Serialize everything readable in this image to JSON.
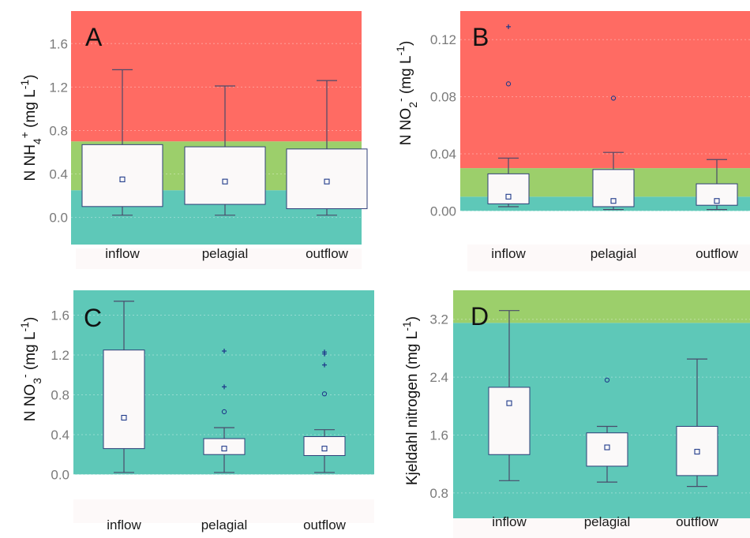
{
  "colors": {
    "poor": "#ff6b63",
    "moderate": "#9ccf6b",
    "good": "#5ec8b8",
    "box_fill": "#fbf9f9",
    "box_edge": "#2f3e78",
    "whisker": "#4a4a6a",
    "mean_marker": "#1f3a8a",
    "outlier": "#1f3a8a",
    "tick_text": "#7a7a7a"
  },
  "chart_data": [
    {
      "type": "box",
      "panel": "A",
      "ylabel_parts": [
        "N NH",
        "4",
        "+",
        " (mg L",
        "-1",
        ")"
      ],
      "yticks": [
        "0.0",
        "0.4",
        "0.8",
        "1.2",
        "1.6"
      ],
      "ylim": [
        -0.25,
        1.9
      ],
      "grid": true,
      "categories": [
        "inflow",
        "pelagial",
        "outflow"
      ],
      "bands": [
        {
          "class": "good",
          "from": -0.25,
          "to": 0.25
        },
        {
          "class": "moderate",
          "from": 0.25,
          "to": 0.7
        },
        {
          "class": "poor",
          "from": 0.7,
          "to": 1.9
        }
      ],
      "boxes": [
        {
          "category": "inflow",
          "min": 0.02,
          "q1": 0.1,
          "q3": 0.67,
          "max": 1.36,
          "mean": 0.35,
          "mild_outliers": [],
          "extreme_outliers": []
        },
        {
          "category": "pelagial",
          "min": 0.02,
          "q1": 0.12,
          "q3": 0.65,
          "max": 1.21,
          "mean": 0.33,
          "mild_outliers": [],
          "extreme_outliers": []
        },
        {
          "category": "outflow",
          "min": 0.02,
          "q1": 0.08,
          "q3": 0.63,
          "max": 1.26,
          "mean": 0.33,
          "mild_outliers": [],
          "extreme_outliers": []
        }
      ]
    },
    {
      "type": "box",
      "panel": "B",
      "ylabel_parts": [
        "N NO",
        "2",
        "-",
        " (mg L",
        "-1",
        ")"
      ],
      "yticks": [
        "0.00",
        "0.04",
        "0.08",
        "0.12"
      ],
      "ylim": [
        -0.018,
        0.14
      ],
      "grid": true,
      "categories": [
        "inflow",
        "pelagial",
        "outflow"
      ],
      "bands": [
        {
          "class": "good",
          "from": 0.0,
          "to": 0.01
        },
        {
          "class": "moderate",
          "from": 0.01,
          "to": 0.03
        },
        {
          "class": "poor",
          "from": 0.03,
          "to": 0.14
        }
      ],
      "boxes": [
        {
          "category": "inflow",
          "min": 0.003,
          "q1": 0.005,
          "q3": 0.026,
          "max": 0.037,
          "mean": 0.01,
          "mild_outliers": [
            0.089
          ],
          "extreme_outliers": [
            0.129
          ]
        },
        {
          "category": "pelagial",
          "min": 0.001,
          "q1": 0.003,
          "q3": 0.029,
          "max": 0.041,
          "mean": 0.007,
          "mild_outliers": [
            0.079
          ],
          "extreme_outliers": []
        },
        {
          "category": "outflow",
          "min": 0.001,
          "q1": 0.004,
          "q3": 0.019,
          "max": 0.036,
          "mean": 0.007,
          "mild_outliers": [],
          "extreme_outliers": []
        }
      ]
    },
    {
      "type": "box",
      "panel": "C",
      "ylabel_parts": [
        "N NO",
        "3",
        "-",
        " (mg L",
        "-1",
        ")"
      ],
      "yticks": [
        "0.0",
        "0.4",
        "0.8",
        "1.2",
        "1.6"
      ],
      "ylim": [
        -0.25,
        1.85
      ],
      "grid": true,
      "categories": [
        "inflow",
        "pelagial",
        "outflow"
      ],
      "bands": [
        {
          "class": "good",
          "from": 0.0,
          "to": 1.85
        }
      ],
      "boxes": [
        {
          "category": "inflow",
          "min": 0.02,
          "q1": 0.26,
          "q3": 1.25,
          "max": 1.74,
          "mean": 0.57,
          "mild_outliers": [],
          "extreme_outliers": []
        },
        {
          "category": "pelagial",
          "min": 0.02,
          "q1": 0.2,
          "q3": 0.36,
          "max": 0.47,
          "mean": 0.26,
          "mild_outliers": [
            0.63
          ],
          "extreme_outliers": [
            0.88,
            1.24
          ]
        },
        {
          "category": "outflow",
          "min": 0.02,
          "q1": 0.19,
          "q3": 0.38,
          "max": 0.45,
          "mean": 0.26,
          "mild_outliers": [
            0.81
          ],
          "extreme_outliers": [
            1.1,
            1.21,
            1.23
          ]
        }
      ]
    },
    {
      "type": "box",
      "panel": "D",
      "ylabel_parts": [
        "Kjeldahl nitrogen ",
        "",
        "",
        "(mg L",
        "-1",
        ")"
      ],
      "yticks": [
        "0.8",
        "1.6",
        "2.4",
        "3.2"
      ],
      "ylim": [
        0.45,
        3.6
      ],
      "grid": true,
      "categories": [
        "inflow",
        "pelagial",
        "outflow"
      ],
      "bands": [
        {
          "class": "good",
          "from": 0.45,
          "to": 3.15
        },
        {
          "class": "moderate",
          "from": 3.15,
          "to": 3.6
        }
      ],
      "boxes": [
        {
          "category": "inflow",
          "min": 0.97,
          "q1": 1.33,
          "q3": 2.26,
          "max": 3.32,
          "mean": 2.04,
          "mild_outliers": [],
          "extreme_outliers": []
        },
        {
          "category": "pelagial",
          "min": 0.95,
          "q1": 1.17,
          "q3": 1.63,
          "max": 1.72,
          "mean": 1.43,
          "mild_outliers": [
            2.36
          ],
          "extreme_outliers": []
        },
        {
          "category": "outflow",
          "min": 0.89,
          "q1": 1.04,
          "q3": 1.72,
          "max": 2.65,
          "mean": 1.37,
          "mild_outliers": [],
          "extreme_outliers": []
        }
      ]
    }
  ]
}
